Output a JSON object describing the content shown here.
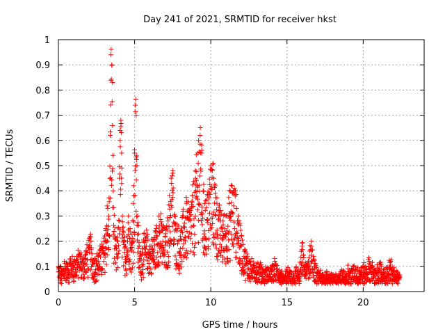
{
  "chart_data": {
    "type": "scatter",
    "title": "Day 241 of 2021, SRMTID for receiver hkst",
    "xlabel": "GPS time / hours",
    "ylabel": "SRMTID / TECUs",
    "xlim": [
      0,
      24
    ],
    "ylim": [
      0,
      1
    ],
    "x_ticks": [
      0,
      5,
      10,
      15,
      20
    ],
    "x_tick_labels": [
      "0",
      "5",
      "10",
      "15",
      "20"
    ],
    "y_ticks": [
      0,
      0.1,
      0.2,
      0.3,
      0.4,
      0.5,
      0.6,
      0.7,
      0.8,
      0.9,
      1
    ],
    "y_tick_labels": [
      "0",
      "0.1",
      "0.2",
      "0.3",
      "0.4",
      "0.5",
      "0.6",
      "0.7",
      "0.8",
      "0.9",
      "1"
    ],
    "grid": true,
    "marker": "plus",
    "series": [
      {
        "name": "SRMTID",
        "color": "#ff0000",
        "description_hint": "dense per-epoch samples from 0 to ~22.5 h",
        "x": [
          0.0,
          0.2,
          0.4,
          0.6,
          0.8,
          1.0,
          1.2,
          1.4,
          1.6,
          1.8,
          2.0,
          2.1,
          2.2,
          2.4,
          2.6,
          2.8,
          3.0,
          3.1,
          3.2,
          3.3,
          3.4,
          3.45,
          3.5,
          3.55,
          3.6,
          3.7,
          3.8,
          3.9,
          4.0,
          4.05,
          4.1,
          4.15,
          4.2,
          4.3,
          4.4,
          4.5,
          4.6,
          4.7,
          4.8,
          4.9,
          5.0,
          5.05,
          5.1,
          5.15,
          5.2,
          5.3,
          5.4,
          5.5,
          5.6,
          5.8,
          6.0,
          6.2,
          6.4,
          6.6,
          6.8,
          7.0,
          7.2,
          7.4,
          7.5,
          7.6,
          7.8,
          8.0,
          8.2,
          8.4,
          8.6,
          8.8,
          9.0,
          9.2,
          9.3,
          9.4,
          9.5,
          9.6,
          9.8,
          10.0,
          10.1,
          10.2,
          10.3,
          10.4,
          10.6,
          10.8,
          11.0,
          11.2,
          11.4,
          11.6,
          11.8,
          12.0,
          12.2,
          12.4,
          12.6,
          12.8,
          13.0,
          13.2,
          13.4,
          13.6,
          13.8,
          14.0,
          14.2,
          14.4,
          14.6,
          14.8,
          15.0,
          15.2,
          15.4,
          15.6,
          15.8,
          16.0,
          16.2,
          16.4,
          16.6,
          16.8,
          17.0,
          17.2,
          17.4,
          17.6,
          17.8,
          18.0,
          18.2,
          18.4,
          18.6,
          18.8,
          19.0,
          19.2,
          19.4,
          19.6,
          19.8,
          20.0,
          20.2,
          20.4,
          20.6,
          20.8,
          21.0,
          21.2,
          21.4,
          21.6,
          21.8,
          22.0,
          22.2,
          22.4
        ],
        "y": [
          0.1,
          0.08,
          0.12,
          0.1,
          0.13,
          0.12,
          0.14,
          0.15,
          0.13,
          0.16,
          0.18,
          0.22,
          0.15,
          0.13,
          0.14,
          0.17,
          0.2,
          0.25,
          0.34,
          0.3,
          0.62,
          0.94,
          0.9,
          0.83,
          0.4,
          0.22,
          0.18,
          0.2,
          0.45,
          0.6,
          0.68,
          0.55,
          0.3,
          0.2,
          0.18,
          0.22,
          0.3,
          0.25,
          0.2,
          0.35,
          0.55,
          0.74,
          0.7,
          0.5,
          0.3,
          0.18,
          0.15,
          0.17,
          0.2,
          0.22,
          0.18,
          0.2,
          0.24,
          0.3,
          0.26,
          0.22,
          0.28,
          0.45,
          0.48,
          0.3,
          0.25,
          0.22,
          0.3,
          0.35,
          0.32,
          0.38,
          0.45,
          0.6,
          0.62,
          0.55,
          0.4,
          0.35,
          0.38,
          0.5,
          0.48,
          0.45,
          0.42,
          0.35,
          0.3,
          0.28,
          0.3,
          0.35,
          0.42,
          0.38,
          0.3,
          0.22,
          0.16,
          0.14,
          0.12,
          0.1,
          0.11,
          0.1,
          0.09,
          0.08,
          0.09,
          0.1,
          0.12,
          0.08,
          0.07,
          0.06,
          0.08,
          0.07,
          0.06,
          0.09,
          0.07,
          0.18,
          0.1,
          0.12,
          0.2,
          0.1,
          0.08,
          0.07,
          0.06,
          0.08,
          0.07,
          0.06,
          0.07,
          0.06,
          0.08,
          0.07,
          0.09,
          0.08,
          0.1,
          0.09,
          0.08,
          0.1,
          0.09,
          0.12,
          0.1,
          0.08,
          0.09,
          0.1,
          0.07,
          0.09,
          0.12,
          0.08,
          0.07,
          0.06
        ]
      }
    ]
  }
}
